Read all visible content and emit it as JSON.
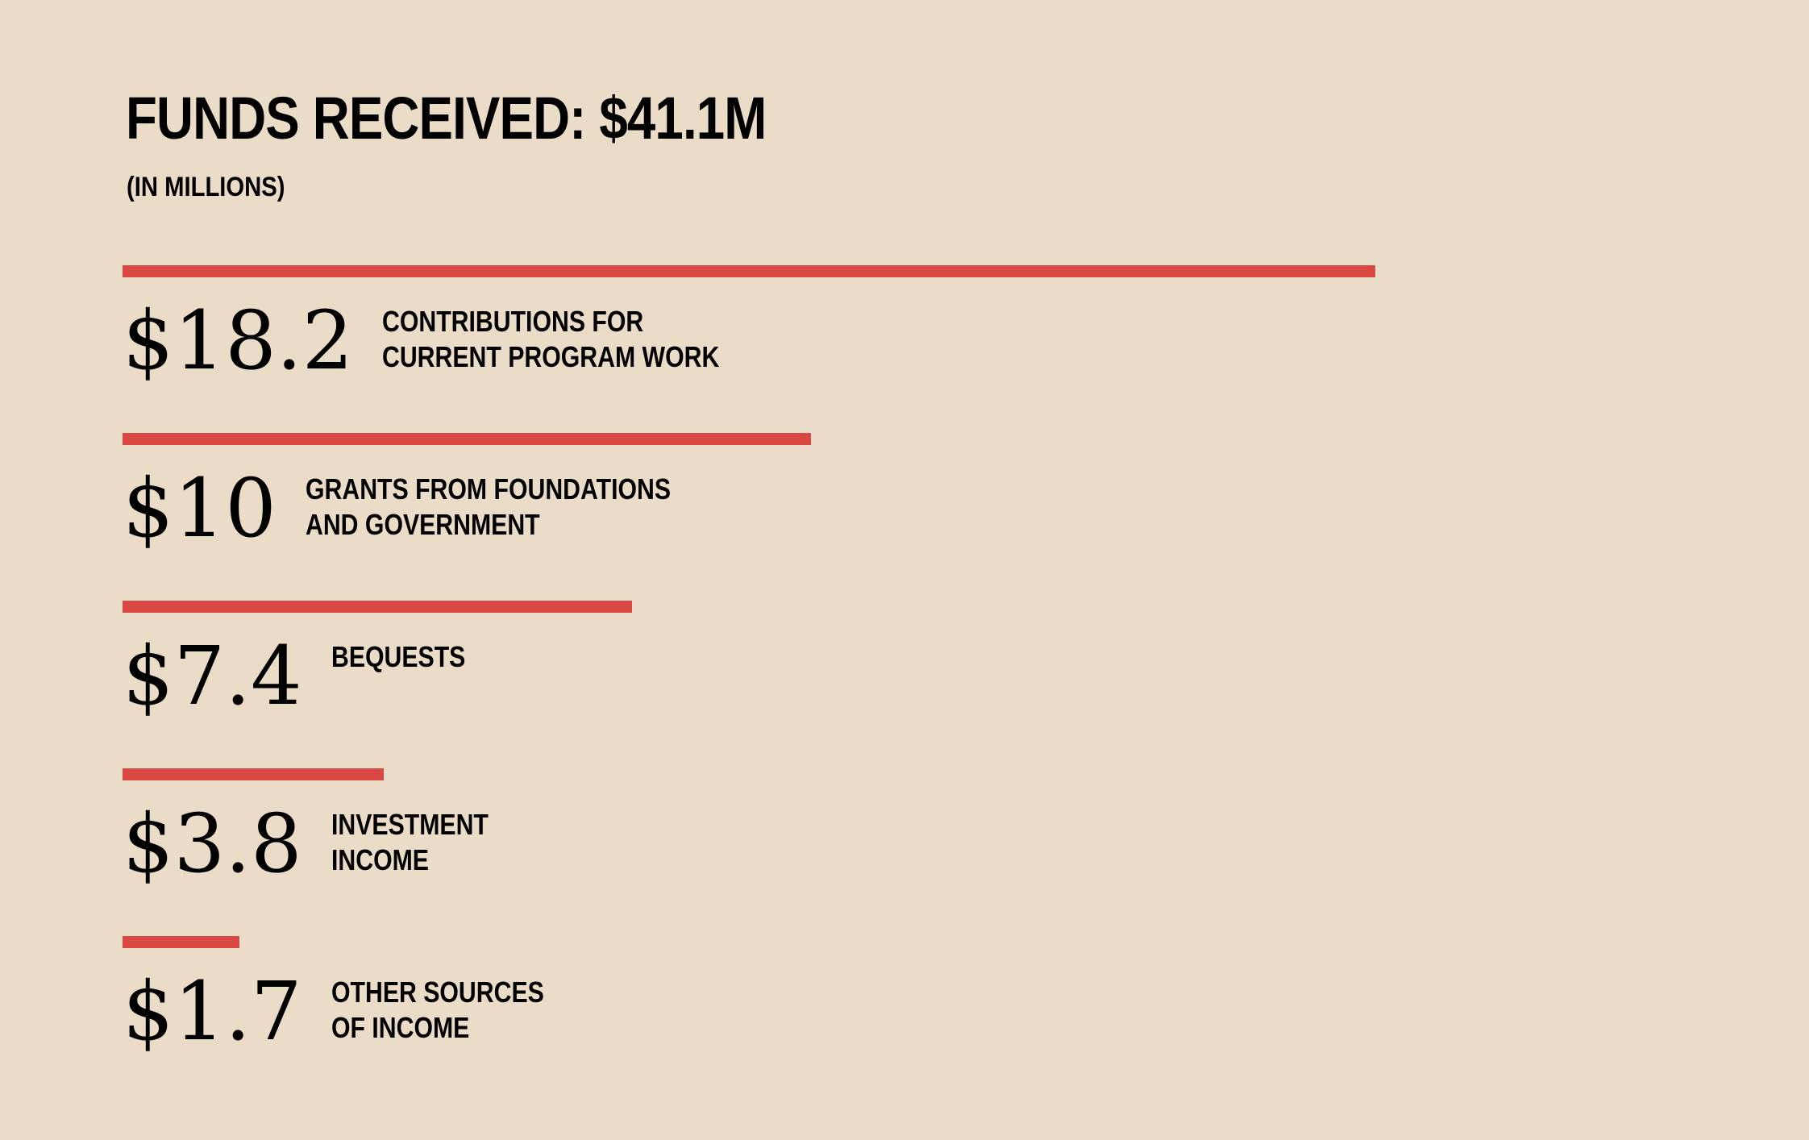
{
  "colors": {
    "background": "#EADCC6",
    "bar": "#DA4843",
    "text": "#000000"
  },
  "chart_data": {
    "type": "bar",
    "orientation": "horizontal",
    "title": "FUNDS RECEIVED: $41.1M",
    "subtitle": "(IN MILLIONS)",
    "grid": false,
    "legend": "none",
    "xlim": [
      0,
      18.2
    ],
    "categories": [
      [
        "CONTRIBUTIONS FOR",
        "CURRENT PROGRAM WORK"
      ],
      [
        "GRANTS FROM FOUNDATIONS",
        "AND GOVERNMENT"
      ],
      [
        "BEQUESTS"
      ],
      [
        "INVESTMENT",
        "INCOME"
      ],
      [
        "OTHER SOURCES",
        "OF INCOME"
      ]
    ],
    "values": [
      18.2,
      10,
      7.4,
      3.8,
      1.7
    ],
    "value_labels": [
      "$18.2",
      "$10",
      "$7.4",
      "$3.8",
      "$1.7"
    ]
  }
}
